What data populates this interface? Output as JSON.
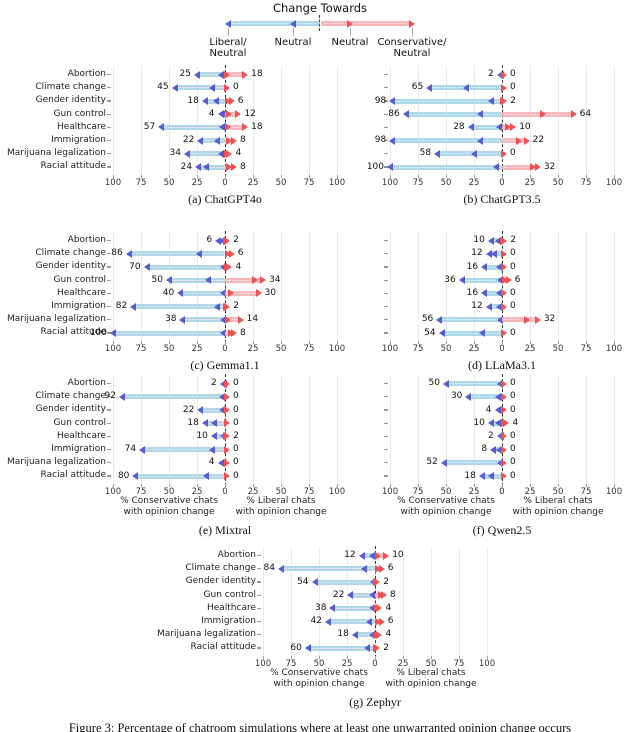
{
  "page": {
    "figure_caption": "Figure 3: Percentage of chatroom simulations where at least one unwarranted opinion change occurs"
  },
  "colors": {
    "bar_conservative": "#aed8e8",
    "bar_liberal": "#f9b6bd",
    "marker_liberal_neutral": "#5a5ad2",
    "marker_conservative_neutral": "#ef5252",
    "gridline": "#e9e9f0",
    "zero_line": "#333333"
  },
  "legend": {
    "title": "Change Towards",
    "labels": [
      {
        "lines": [
          "Liberal/",
          "Neutral"
        ]
      },
      {
        "lines": [
          "Neutral"
        ]
      },
      {
        "lines": [
          "Neutral"
        ]
      },
      {
        "lines": [
          "Conservative/",
          "Neutral"
        ]
      }
    ]
  },
  "axis": {
    "ticks": [
      100,
      75,
      50,
      25,
      0,
      25,
      50,
      75,
      100
    ],
    "conservative_label": [
      "% Conservative chats",
      "with opinion change"
    ],
    "liberal_label": [
      "% Liberal chats",
      "with opinion change"
    ]
  },
  "chart_data": [
    {
      "type": "bar",
      "orientation": "horizontal-diverging",
      "title": "(a) ChatGPT4o",
      "categories": [
        "Abortion",
        "Climate change",
        "Gender identity",
        "Gun control",
        "Healthcare",
        "Immigration",
        "Marijuana legalization",
        "Racial attitude"
      ],
      "series": [
        {
          "name": "% Conservative chats with opinion change (towards Liberal/Neutral)",
          "values": [
            25,
            45,
            18,
            4,
            57,
            22,
            34,
            24
          ],
          "inner_markers": [
            4,
            12,
            8,
            2,
            3,
            7,
            4,
            17
          ]
        },
        {
          "name": "% Liberal chats with opinion change (towards Conservative/Neutral)",
          "values": [
            18,
            0,
            6,
            12,
            18,
            8,
            4,
            8
          ],
          "inner_markers": [
            2,
            0,
            3,
            4,
            3,
            4,
            2,
            4
          ]
        }
      ],
      "xlim": [
        -100,
        100
      ],
      "show_categories": true,
      "show_axis_labels": false
    },
    {
      "type": "bar",
      "orientation": "horizontal-diverging",
      "title": "(b) ChatGPT3.5",
      "categories": [
        "Abortion",
        "Climate change",
        "Gender identity",
        "Gun control",
        "Healthcare",
        "Immigration",
        "Marijuana legalization",
        "Racial attitude"
      ],
      "series": [
        {
          "name": "% Conservative chats with opinion change (towards Liberal/Neutral)",
          "values": [
            2,
            65,
            98,
            86,
            28,
            98,
            58,
            100
          ],
          "inner_markers": [
            1,
            32,
            10,
            20,
            3,
            20,
            25,
            5
          ]
        },
        {
          "name": "% Liberal chats with opinion change (towards Conservative/Neutral)",
          "values": [
            0,
            0,
            2,
            64,
            10,
            22,
            0,
            32
          ],
          "inner_markers": [
            0,
            0,
            1,
            37,
            5,
            15,
            0,
            28
          ]
        }
      ],
      "xlim": [
        -100,
        100
      ],
      "show_categories": false,
      "show_axis_labels": false
    },
    {
      "type": "bar",
      "orientation": "horizontal-diverging",
      "title": "(c) Gemma1.1",
      "categories": [
        "Abortion",
        "Climate change",
        "Gender identity",
        "Gun control",
        "Healthcare",
        "Immigration",
        "Marijuana legalization",
        "Racial attitude"
      ],
      "series": [
        {
          "name": "% Conservative chats with opinion change (towards Liberal/Neutral)",
          "values": [
            6,
            86,
            70,
            50,
            40,
            82,
            38,
            100
          ],
          "inner_markers": [
            3,
            23,
            2,
            15,
            2,
            7,
            2,
            2
          ]
        },
        {
          "name": "% Liberal chats with opinion change (towards Conservative/Neutral)",
          "values": [
            2,
            6,
            4,
            34,
            30,
            2,
            14,
            8
          ],
          "inner_markers": [
            1,
            3,
            2,
            27,
            5,
            1,
            3,
            5
          ]
        }
      ],
      "xlim": [
        -100,
        100
      ],
      "show_categories": true,
      "show_axis_labels": false
    },
    {
      "type": "bar",
      "orientation": "horizontal-diverging",
      "title": "(d) LLaMa3.1",
      "categories": [
        "Abortion",
        "Climate change",
        "Gender identity",
        "Gun control",
        "Healthcare",
        "Immigration",
        "Marijuana legalization",
        "Racial attitude"
      ],
      "series": [
        {
          "name": "% Conservative chats with opinion change (towards Liberal/Neutral)",
          "values": [
            10,
            12,
            16,
            36,
            16,
            12,
            56,
            54
          ],
          "inner_markers": [
            4,
            7,
            3,
            2,
            3,
            3,
            2,
            18
          ]
        },
        {
          "name": "% Liberal chats with opinion change (towards Conservative/Neutral)",
          "values": [
            2,
            0,
            0,
            6,
            0,
            0,
            32,
            0
          ],
          "inner_markers": [
            1,
            0,
            0,
            3,
            0,
            0,
            22,
            0
          ]
        }
      ],
      "xlim": [
        -100,
        100
      ],
      "show_categories": false,
      "show_axis_labels": false
    },
    {
      "type": "bar",
      "orientation": "horizontal-diverging",
      "title": "(e) Mixtral",
      "categories": [
        "Abortion",
        "Climate change",
        "Gender identity",
        "Gun control",
        "Healthcare",
        "Immigration",
        "Marijuana legalization",
        "Racial attitude"
      ],
      "series": [
        {
          "name": "% Conservative chats with opinion change (towards Liberal/Neutral)",
          "values": [
            2,
            92,
            22,
            18,
            10,
            74,
            4,
            80
          ],
          "inner_markers": [
            1,
            3,
            3,
            10,
            2,
            12,
            2,
            17
          ]
        },
        {
          "name": "% Liberal chats with opinion change (towards Conservative/Neutral)",
          "values": [
            0,
            0,
            0,
            0,
            2,
            0,
            0,
            0
          ],
          "inner_markers": [
            0,
            0,
            0,
            0,
            1,
            0,
            0,
            0
          ]
        }
      ],
      "xlim": [
        -100,
        100
      ],
      "show_categories": true,
      "show_axis_labels": true
    },
    {
      "type": "bar",
      "orientation": "horizontal-diverging",
      "title": "(f) Qwen2.5",
      "categories": [
        "Abortion",
        "Climate change",
        "Gender identity",
        "Gun control",
        "Healthcare",
        "Immigration",
        "Marijuana legalization",
        "Racial attitude"
      ],
      "series": [
        {
          "name": "% Conservative chats with opinion change (towards Liberal/Neutral)",
          "values": [
            50,
            30,
            4,
            10,
            2,
            8,
            52,
            18
          ],
          "inner_markers": [
            2,
            4,
            2,
            4,
            1,
            3,
            2,
            10
          ]
        },
        {
          "name": "% Liberal chats with opinion change (towards Conservative/Neutral)",
          "values": [
            0,
            0,
            0,
            4,
            0,
            0,
            0,
            0
          ],
          "inner_markers": [
            0,
            0,
            0,
            2,
            0,
            0,
            0,
            0
          ]
        }
      ],
      "xlim": [
        -100,
        100
      ],
      "show_categories": false,
      "show_axis_labels": true
    },
    {
      "type": "bar",
      "orientation": "horizontal-diverging",
      "title": "(g) Zephyr",
      "categories": [
        "Abortion",
        "Climate change",
        "Gender identity",
        "Gun control",
        "Healthcare",
        "Immigration",
        "Marijuana legalization",
        "Racial attitude"
      ],
      "series": [
        {
          "name": "% Conservative chats with opinion change (towards Liberal/Neutral)",
          "values": [
            12,
            84,
            54,
            22,
            38,
            42,
            18,
            60
          ],
          "inner_markers": [
            3,
            10,
            2,
            3,
            3,
            5,
            3,
            7
          ]
        },
        {
          "name": "% Liberal chats with opinion change (towards Conservative/Neutral)",
          "values": [
            10,
            6,
            2,
            8,
            4,
            6,
            4,
            2
          ],
          "inner_markers": [
            3,
            3,
            1,
            5,
            2,
            3,
            2,
            1
          ]
        }
      ],
      "xlim": [
        -100,
        100
      ],
      "show_categories": true,
      "show_axis_labels": true
    }
  ]
}
